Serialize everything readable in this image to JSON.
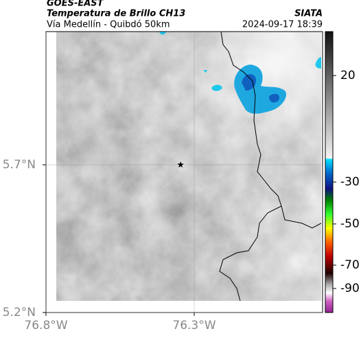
{
  "header": {
    "source": "GOES-EAST",
    "product": "Temperatura de Brillo CH13",
    "org": "SIATA",
    "route": "Vía Medellín - Quibdó 50km",
    "datetime": "2024-09-17 18:39"
  },
  "map": {
    "xlim": [
      -76.8,
      -75.867
    ],
    "ylim": [
      5.2,
      6.151
    ],
    "xticks": [
      {
        "value": -76.8,
        "label": "76.8°W"
      },
      {
        "value": -76.3,
        "label": "76.3°W"
      }
    ],
    "yticks": [
      {
        "value": 5.2,
        "label": "5.2°N"
      },
      {
        "value": 5.7,
        "label": "5.7°N"
      }
    ],
    "grid": true,
    "marker": {
      "lon": -76.346,
      "lat": 5.7
    }
  },
  "colorbar": {
    "ticks": [
      20,
      -30,
      -50,
      -70,
      -90
    ]
  }
}
